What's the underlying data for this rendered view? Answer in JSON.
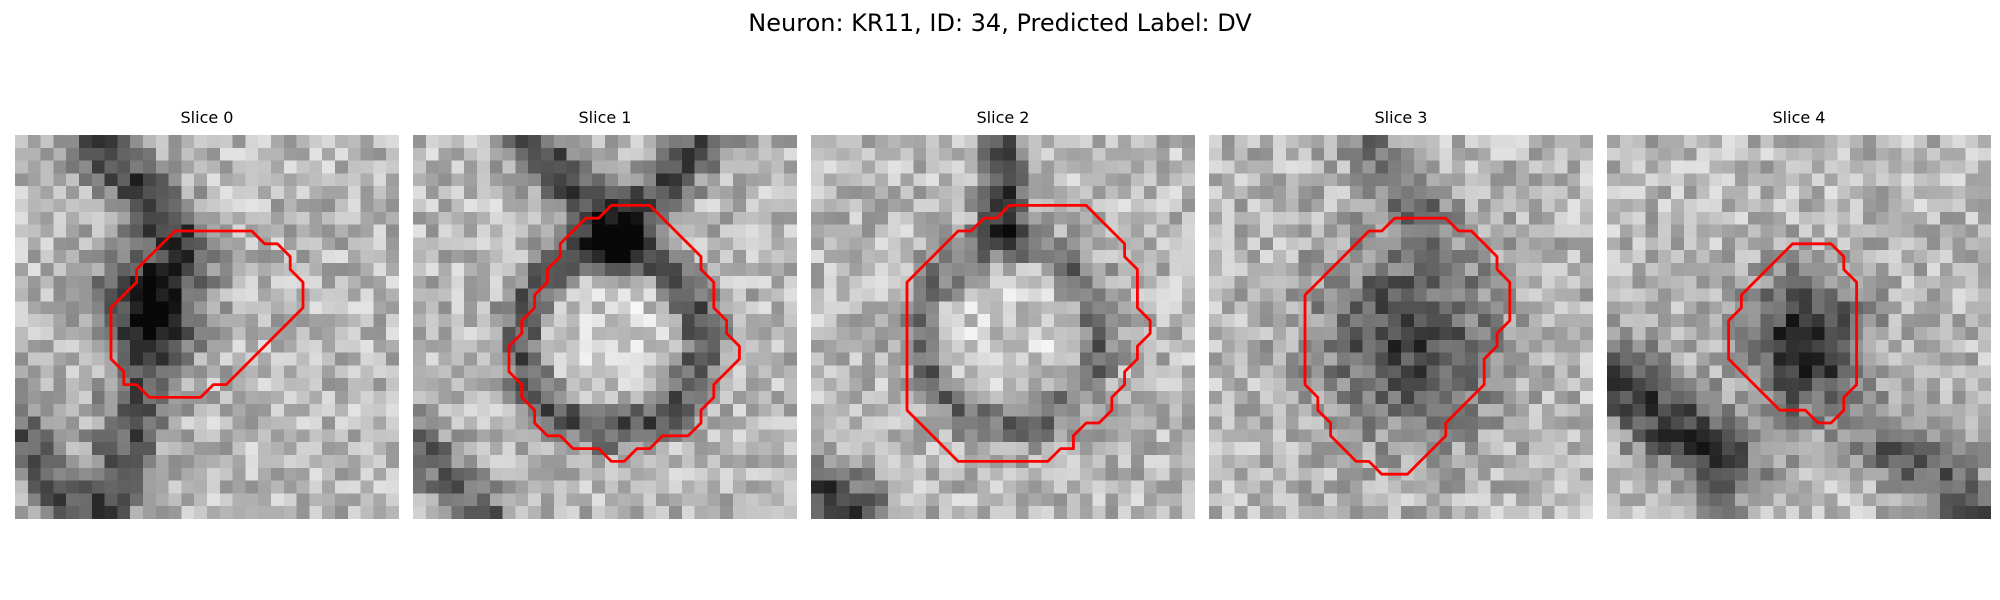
{
  "figure": {
    "title": "Neuron: KR11, ID: 34, Predicted Label: DV"
  },
  "panels": [
    {
      "title": "Slice 0",
      "blob": {
        "cx": 10.5,
        "cy": 12.5,
        "rx": 4.5,
        "ry": 4.5,
        "depth": 0.62
      },
      "bands": [
        {
          "x1": 6,
          "y1": 0,
          "x2": 13,
          "y2": 8,
          "width": 2.2,
          "depth": 0.45
        },
        {
          "x1": 11,
          "y1": 16,
          "x2": 7,
          "y2": 30,
          "width": 2.5,
          "depth": 0.4
        },
        {
          "x1": 0,
          "y1": 22,
          "x2": 4,
          "y2": 30,
          "width": 2.0,
          "depth": 0.35
        }
      ],
      "contour": [
        [
          12.5,
          7.5
        ],
        [
          18.5,
          7.5
        ],
        [
          19.5,
          8.5
        ],
        [
          20.5,
          8.5
        ],
        [
          21.5,
          9.5
        ],
        [
          21.5,
          10.5
        ],
        [
          22.5,
          11.5
        ],
        [
          22.5,
          13.5
        ],
        [
          16.5,
          19.5
        ],
        [
          15.5,
          19.5
        ],
        [
          14.5,
          20.5
        ],
        [
          10.5,
          20.5
        ],
        [
          9.5,
          19.5
        ],
        [
          8.5,
          19.5
        ],
        [
          8.5,
          18.5
        ],
        [
          7.5,
          17.5
        ],
        [
          7.5,
          13.5
        ],
        [
          9.5,
          11.5
        ],
        [
          9.5,
          10.5
        ]
      ]
    },
    {
      "title": "Slice 1",
      "blob": {
        "cx": 15.5,
        "cy": 16.0,
        "rx": 7.8,
        "ry": 7.8,
        "depth": 0.4,
        "ring": true
      },
      "bands": [
        {
          "x1": 9,
          "y1": 0,
          "x2": 16,
          "y2": 8,
          "width": 2.0,
          "depth": 0.45
        },
        {
          "x1": 23,
          "y1": 0,
          "x2": 16,
          "y2": 8,
          "width": 2.0,
          "depth": 0.45
        },
        {
          "x1": 0,
          "y1": 24,
          "x2": 6,
          "y2": 30,
          "width": 2.0,
          "depth": 0.35
        }
      ],
      "contour": [
        [
          13.5,
          6.5
        ],
        [
          14.5,
          6.5
        ],
        [
          15.5,
          5.5
        ],
        [
          18.5,
          5.5
        ],
        [
          19.5,
          6.5
        ],
        [
          20.5,
          7.5
        ],
        [
          22.5,
          9.5
        ],
        [
          22.5,
          10.5
        ],
        [
          23.5,
          11.5
        ],
        [
          23.5,
          13.5
        ],
        [
          24.5,
          14.5
        ],
        [
          24.5,
          15.5
        ],
        [
          25.5,
          16.5
        ],
        [
          25.5,
          17.5
        ],
        [
          23.5,
          19.5
        ],
        [
          23.5,
          20.5
        ],
        [
          22.5,
          21.5
        ],
        [
          22.5,
          22.5
        ],
        [
          21.5,
          23.5
        ],
        [
          19.5,
          23.5
        ],
        [
          18.5,
          24.5
        ],
        [
          17.5,
          24.5
        ],
        [
          16.5,
          25.5
        ],
        [
          15.5,
          25.5
        ],
        [
          14.5,
          24.5
        ],
        [
          12.5,
          24.5
        ],
        [
          11.5,
          23.5
        ],
        [
          10.5,
          23.5
        ],
        [
          9.5,
          22.5
        ],
        [
          9.5,
          21.5
        ],
        [
          8.5,
          20.5
        ],
        [
          8.5,
          19.5
        ],
        [
          7.5,
          18.5
        ],
        [
          7.5,
          16.5
        ],
        [
          8.5,
          15.5
        ],
        [
          8.5,
          14.5
        ],
        [
          9.5,
          13.5
        ],
        [
          9.5,
          12.5
        ],
        [
          10.5,
          11.5
        ],
        [
          10.5,
          10.5
        ],
        [
          11.5,
          9.5
        ],
        [
          11.5,
          8.5
        ],
        [
          12.5,
          7.5
        ]
      ]
    },
    {
      "title": "Slice 2",
      "blob": {
        "cx": 15.5,
        "cy": 15.5,
        "rx": 7.8,
        "ry": 7.8,
        "depth": 0.3,
        "ring": true
      },
      "bands": [
        {
          "x1": 15,
          "y1": 0,
          "x2": 15,
          "y2": 7,
          "width": 1.6,
          "depth": 0.5
        },
        {
          "x1": 0,
          "y1": 27,
          "x2": 4,
          "y2": 30,
          "width": 2.5,
          "depth": 0.45
        }
      ],
      "contour": [
        [
          13.5,
          6.5
        ],
        [
          14.5,
          6.5
        ],
        [
          15.5,
          5.5
        ],
        [
          21.5,
          5.5
        ],
        [
          22.5,
          6.5
        ],
        [
          23.5,
          7.5
        ],
        [
          24.5,
          8.5
        ],
        [
          24.5,
          9.5
        ],
        [
          25.5,
          10.5
        ],
        [
          25.5,
          13.5
        ],
        [
          26.5,
          14.5
        ],
        [
          26.5,
          15.5
        ],
        [
          25.5,
          16.5
        ],
        [
          25.5,
          17.5
        ],
        [
          24.5,
          18.5
        ],
        [
          24.5,
          19.5
        ],
        [
          23.5,
          20.5
        ],
        [
          23.5,
          21.5
        ],
        [
          22.5,
          22.5
        ],
        [
          21.5,
          22.5
        ],
        [
          20.5,
          23.5
        ],
        [
          20.5,
          24.5
        ],
        [
          19.5,
          24.5
        ],
        [
          18.5,
          25.5
        ],
        [
          16.5,
          25.5
        ],
        [
          11.5,
          25.5
        ],
        [
          10.5,
          24.5
        ],
        [
          9.5,
          23.5
        ],
        [
          8.5,
          22.5
        ],
        [
          7.5,
          21.5
        ],
        [
          7.5,
          19.5
        ],
        [
          7.5,
          11.5
        ],
        [
          8.5,
          10.5
        ],
        [
          9.5,
          9.5
        ],
        [
          10.5,
          8.5
        ],
        [
          11.5,
          7.5
        ],
        [
          12.5,
          7.5
        ]
      ]
    },
    {
      "title": "Slice 3",
      "blob": {
        "cx": 15.5,
        "cy": 16.0,
        "rx": 8.0,
        "ry": 8.5,
        "depth": 0.45
      },
      "bands": [
        {
          "x1": 12,
          "y1": 0,
          "x2": 17,
          "y2": 6,
          "width": 2.0,
          "depth": 0.3
        }
      ],
      "contour": [
        [
          12.5,
          7.5
        ],
        [
          13.5,
          7.5
        ],
        [
          14.5,
          6.5
        ],
        [
          18.5,
          6.5
        ],
        [
          19.5,
          7.5
        ],
        [
          20.5,
          7.5
        ],
        [
          21.5,
          8.5
        ],
        [
          22.5,
          9.5
        ],
        [
          22.5,
          10.5
        ],
        [
          23.5,
          11.5
        ],
        [
          23.5,
          14.5
        ],
        [
          22.5,
          15.5
        ],
        [
          22.5,
          16.5
        ],
        [
          21.5,
          17.5
        ],
        [
          21.5,
          19.5
        ],
        [
          20.5,
          20.5
        ],
        [
          19.5,
          21.5
        ],
        [
          18.5,
          22.5
        ],
        [
          18.5,
          23.5
        ],
        [
          17.5,
          24.5
        ],
        [
          16.5,
          25.5
        ],
        [
          15.5,
          26.5
        ],
        [
          13.5,
          26.5
        ],
        [
          12.5,
          25.5
        ],
        [
          11.5,
          25.5
        ],
        [
          10.5,
          24.5
        ],
        [
          9.5,
          23.5
        ],
        [
          9.5,
          22.5
        ],
        [
          8.5,
          21.5
        ],
        [
          8.5,
          20.5
        ],
        [
          7.5,
          19.5
        ],
        [
          7.5,
          12.5
        ],
        [
          8.5,
          11.5
        ],
        [
          9.5,
          10.5
        ],
        [
          10.5,
          9.5
        ],
        [
          11.5,
          8.5
        ]
      ]
    },
    {
      "title": "Slice 4",
      "blob": {
        "cx": 15.5,
        "cy": 16.5,
        "rx": 5.0,
        "ry": 6.0,
        "depth": 0.62
      },
      "bands": [
        {
          "x1": 1,
          "y1": 19,
          "x2": 9,
          "y2": 26,
          "width": 3.0,
          "depth": 0.5
        },
        {
          "x1": 22,
          "y1": 24,
          "x2": 30,
          "y2": 30,
          "width": 2.5,
          "depth": 0.35
        }
      ],
      "contour": [
        [
          13.5,
          9.5
        ],
        [
          14.5,
          8.5
        ],
        [
          15.5,
          8.5
        ],
        [
          16.5,
          8.5
        ],
        [
          17.5,
          8.5
        ],
        [
          18.5,
          9.5
        ],
        [
          18.5,
          10.5
        ],
        [
          19.5,
          11.5
        ],
        [
          19.5,
          19.5
        ],
        [
          18.5,
          20.5
        ],
        [
          18.5,
          21.5
        ],
        [
          17.5,
          22.5
        ],
        [
          16.5,
          22.5
        ],
        [
          15.5,
          21.5
        ],
        [
          13.5,
          21.5
        ],
        [
          12.5,
          20.5
        ],
        [
          10.5,
          18.5
        ],
        [
          9.5,
          17.5
        ],
        [
          9.5,
          14.5
        ],
        [
          10.5,
          13.5
        ],
        [
          10.5,
          12.5
        ],
        [
          11.5,
          11.5
        ],
        [
          12.5,
          10.5
        ]
      ]
    }
  ]
}
